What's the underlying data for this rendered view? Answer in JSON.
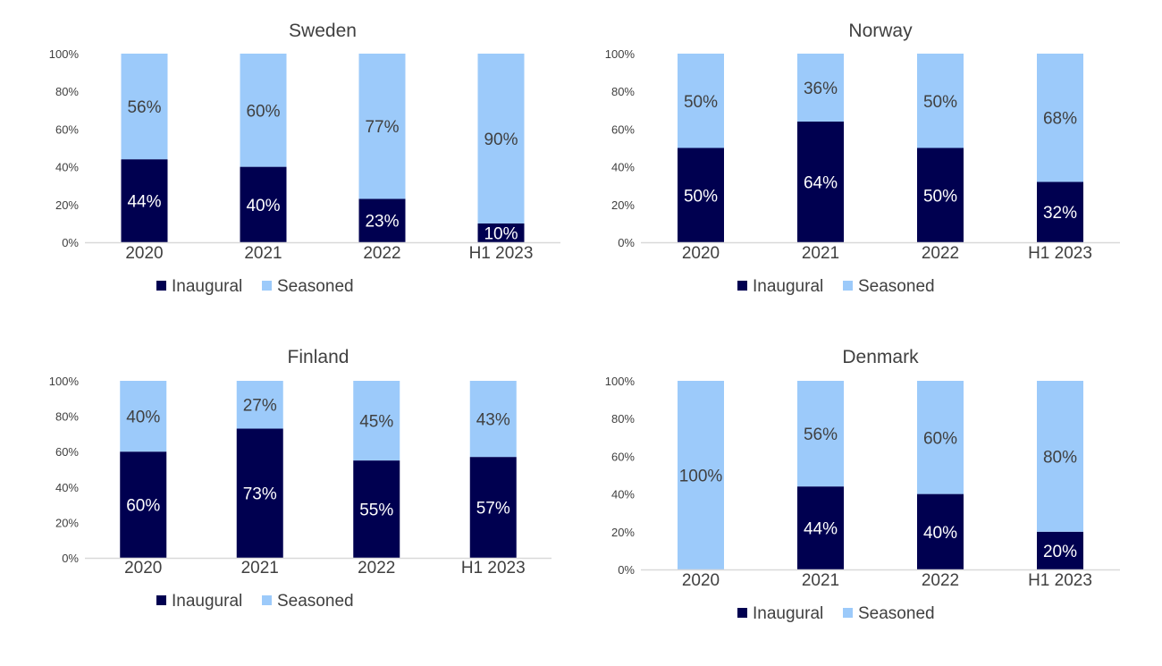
{
  "colors": {
    "inaugural": "#000050",
    "seasoned": "#9ccafa",
    "axis": "#d9d9d9"
  },
  "legend": {
    "inaugural": "Inaugural",
    "seasoned": "Seasoned"
  },
  "chart_data": [
    {
      "type": "bar",
      "stacked": true,
      "title": "Sweden",
      "categories": [
        "2020",
        "2021",
        "2022",
        "H1 2023"
      ],
      "series": [
        {
          "name": "Inaugural",
          "values": [
            44,
            40,
            23,
            10
          ]
        },
        {
          "name": "Seasoned",
          "values": [
            56,
            60,
            77,
            90
          ]
        }
      ],
      "data_labels": {
        "Inaugural": [
          "44%",
          "40%",
          "23%",
          "10%"
        ],
        "Seasoned": [
          "56%",
          "60%",
          "77%",
          "90%"
        ]
      },
      "ylim": [
        0,
        100
      ],
      "yticks": [
        "0%",
        "20%",
        "40%",
        "60%",
        "80%",
        "100%"
      ],
      "grid": false,
      "legend_position": "bottom"
    },
    {
      "type": "bar",
      "stacked": true,
      "title": "Norway",
      "categories": [
        "2020",
        "2021",
        "2022",
        "H1 2023"
      ],
      "series": [
        {
          "name": "Inaugural",
          "values": [
            50,
            64,
            50,
            32
          ]
        },
        {
          "name": "Seasoned",
          "values": [
            50,
            36,
            50,
            68
          ]
        }
      ],
      "data_labels": {
        "Inaugural": [
          "50%",
          "64%",
          "50%",
          "32%"
        ],
        "Seasoned": [
          "50%",
          "36%",
          "50%",
          "68%"
        ]
      },
      "ylim": [
        0,
        100
      ],
      "yticks": [
        "0%",
        "20%",
        "40%",
        "60%",
        "80%",
        "100%"
      ],
      "grid": false,
      "legend_position": "bottom"
    },
    {
      "type": "bar",
      "stacked": true,
      "title": "Finland",
      "categories": [
        "2020",
        "2021",
        "2022",
        "H1 2023"
      ],
      "series": [
        {
          "name": "Inaugural",
          "values": [
            60,
            73,
            55,
            57
          ]
        },
        {
          "name": "Seasoned",
          "values": [
            40,
            27,
            45,
            43
          ]
        }
      ],
      "data_labels": {
        "Inaugural": [
          "60%",
          "73%",
          "55%",
          "57%"
        ],
        "Seasoned": [
          "40%",
          "27%",
          "45%",
          "43%"
        ]
      },
      "ylim": [
        0,
        100
      ],
      "yticks": [
        "0%",
        "20%",
        "40%",
        "60%",
        "80%",
        "100%"
      ],
      "grid": false,
      "legend_position": "bottom"
    },
    {
      "type": "bar",
      "stacked": true,
      "title": "Denmark",
      "categories": [
        "2020",
        "2021",
        "2022",
        "H1 2023"
      ],
      "series": [
        {
          "name": "Inaugural",
          "values": [
            0,
            44,
            40,
            20
          ]
        },
        {
          "name": "Seasoned",
          "values": [
            100,
            56,
            60,
            80
          ]
        }
      ],
      "data_labels": {
        "Inaugural": [
          "",
          "44%",
          "40%",
          "20%"
        ],
        "Seasoned": [
          "100%",
          "56%",
          "60%",
          "80%"
        ]
      },
      "ylim": [
        0,
        100
      ],
      "yticks": [
        "0%",
        "20%",
        "40%",
        "60%",
        "80%",
        "100%"
      ],
      "grid": false,
      "legend_position": "bottom"
    }
  ]
}
